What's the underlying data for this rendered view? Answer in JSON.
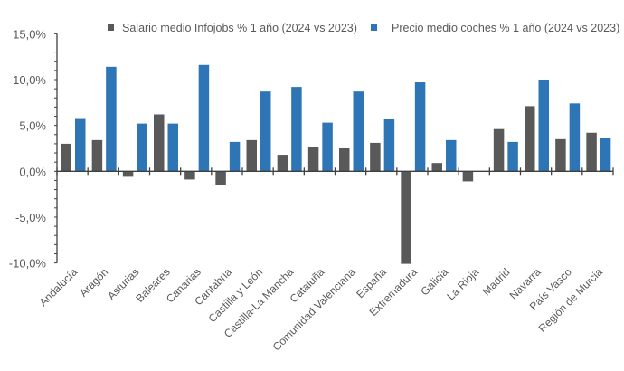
{
  "chart_data": {
    "type": "bar",
    "title": "",
    "xlabel": "",
    "ylabel": "",
    "ylim": [
      -10,
      15
    ],
    "yticks": [
      "-10,0%",
      "-5,0%",
      "0,0%",
      "5,0%",
      "10,0%",
      "15,0%"
    ],
    "ytick_values": [
      -10,
      -5,
      0,
      5,
      10,
      15
    ],
    "grid": false,
    "legend_position": "top",
    "categories": [
      "Andalucía",
      "Aragón",
      "Asturias",
      "Baleares",
      "Canarias",
      "Cantabria",
      "Castilla y León",
      "Castilla-La Mancha",
      "Cataluña",
      "Comunidad Valenciana",
      "España",
      "Extremadura",
      "Galicia",
      "La Rioja",
      "Madrid",
      "Navarra",
      "País Vasco",
      "Región de Murcia"
    ],
    "series": [
      {
        "name": "Salario medio Infojobs % 1 año (2024 vs 2023)",
        "color": "#595959",
        "values": [
          3.0,
          3.4,
          -0.6,
          6.2,
          -0.9,
          -1.5,
          3.4,
          1.8,
          2.6,
          2.5,
          3.1,
          -10.1,
          0.9,
          -1.1,
          4.6,
          7.1,
          3.5,
          4.2
        ]
      },
      {
        "name": "Precio medio coches % 1 año (2024 vs 2023)",
        "color": "#2E75B6",
        "values": [
          5.8,
          11.4,
          5.2,
          5.2,
          11.6,
          3.2,
          8.7,
          9.2,
          5.3,
          8.7,
          5.7,
          9.7,
          3.4,
          0.0,
          3.2,
          10.0,
          7.4,
          3.6
        ]
      }
    ]
  }
}
